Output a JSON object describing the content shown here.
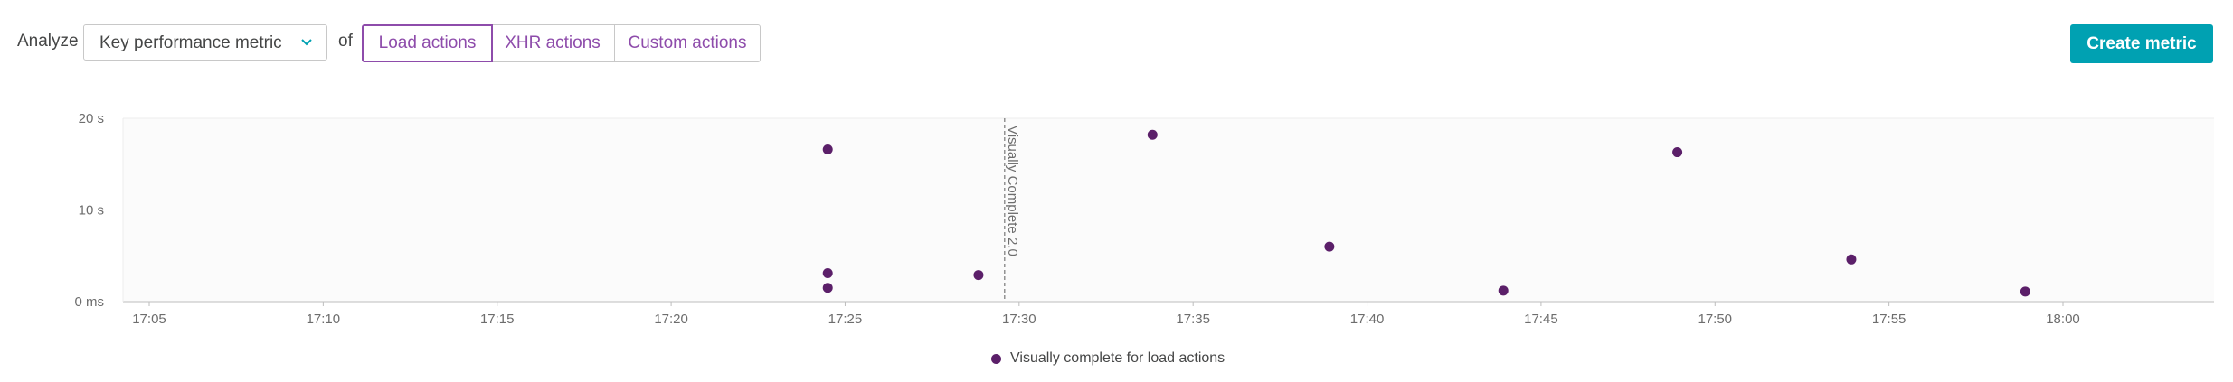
{
  "toolbar": {
    "analyze_label": "Analyze",
    "metric_select_value": "Key performance metric",
    "of_label": "of",
    "action_tabs": [
      {
        "label": "Load actions",
        "active": true
      },
      {
        "label": "XHR actions",
        "active": false
      },
      {
        "label": "Custom actions",
        "active": false
      }
    ],
    "create_metric_label": "Create metric"
  },
  "colors": {
    "accent_purple": "#8e4cab",
    "point": "#5b1f69",
    "button_teal": "#00a1b2",
    "plot_bg": "#fbfbfb"
  },
  "chart_data": {
    "type": "scatter",
    "x_ticks": [
      "17:05",
      "17:10",
      "17:15",
      "17:20",
      "17:25",
      "17:30",
      "17:35",
      "17:40",
      "17:45",
      "17:50",
      "17:55",
      "18:00"
    ],
    "x_range": [
      "17:04",
      "18:04"
    ],
    "y_ticks": [
      "0 ms",
      "10 s",
      "20 s"
    ],
    "y_tick_values": [
      0,
      10,
      20
    ],
    "ylim": [
      0,
      20
    ],
    "y_unit": "s",
    "grid": true,
    "series": [
      {
        "name": "Visually complete for load actions",
        "color": "#5b1f69",
        "points": [
          {
            "x": "17:24:30",
            "y": 16.6
          },
          {
            "x": "17:24:30",
            "y": 3.1
          },
          {
            "x": "17:24:30",
            "y": 1.5
          },
          {
            "x": "17:28:50",
            "y": 2.9
          },
          {
            "x": "17:33:50",
            "y": 18.2
          },
          {
            "x": "17:38:55",
            "y": 6.0
          },
          {
            "x": "17:43:55",
            "y": 1.2
          },
          {
            "x": "17:48:55",
            "y": 16.3
          },
          {
            "x": "17:53:55",
            "y": 4.6
          },
          {
            "x": "17:58:55",
            "y": 1.1
          }
        ]
      }
    ],
    "annotations": [
      {
        "x": "17:29:35",
        "label": "Visually Complete 2.0"
      }
    ],
    "legend_position": "bottom-center"
  }
}
